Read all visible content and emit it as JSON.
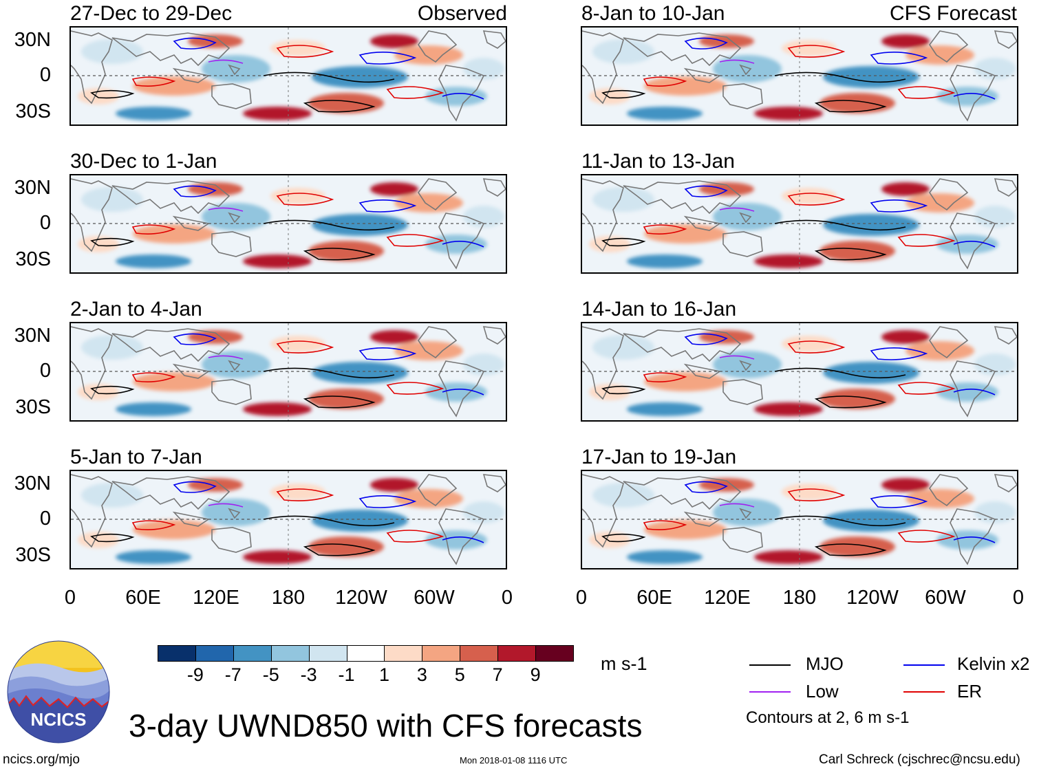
{
  "panels": {
    "obs": [
      {
        "title": "27-Dec to 29-Dec",
        "tag": "Observed"
      },
      {
        "title": "30-Dec to 1-Jan"
      },
      {
        "title": "2-Jan to 4-Jan"
      },
      {
        "title": "5-Jan to 7-Jan"
      }
    ],
    "fc": [
      {
        "title": "8-Jan to 10-Jan",
        "tag": "CFS Forecast"
      },
      {
        "title": "11-Jan to 13-Jan"
      },
      {
        "title": "14-Jan to 16-Jan"
      },
      {
        "title": "17-Jan to 19-Jan"
      }
    ]
  },
  "axes": {
    "lat_labels": [
      "30N",
      "0",
      "30S"
    ],
    "lon_labels": [
      "0",
      "60E",
      "120E",
      "180",
      "120W",
      "60W",
      "0"
    ]
  },
  "colorbar": {
    "ticks": [
      "-9",
      "-7",
      "-5",
      "-3",
      "-1",
      "1",
      "3",
      "5",
      "7",
      "9"
    ],
    "colors": [
      "#08306b",
      "#2166ac",
      "#4393c3",
      "#92c5de",
      "#d1e5f0",
      "#ffffff",
      "#fddbc7",
      "#f4a582",
      "#d6604d",
      "#b2182b",
      "#67001f"
    ],
    "units": "m s-1"
  },
  "legend": {
    "items": [
      {
        "label": "MJO",
        "color": "#000000"
      },
      {
        "label": "Kelvin x2",
        "color": "#0000ee"
      },
      {
        "label": "Low",
        "color": "#a020f0"
      },
      {
        "label": "ER",
        "color": "#e00000"
      }
    ],
    "note": "Contours at 2, 6 m s-1"
  },
  "logo": {
    "text": "NCICS"
  },
  "title": "3-day UWND850 with CFS forecasts",
  "footer": {
    "url": "ncics.org/mjo",
    "timestamp": "Mon 2018-01-08 1116 UTC",
    "credit": "Carl Schreck (cjschrec@ncsu.edu)"
  }
}
